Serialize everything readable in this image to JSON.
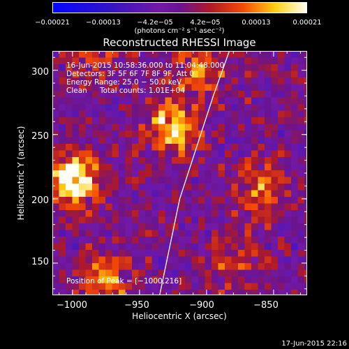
{
  "chart_data": {
    "type": "heatmap",
    "title": "Reconstructed RHESSI Image",
    "xlabel": "Heliocentric X (arcsec)",
    "ylabel": "Heliocentric Y (arcsec)",
    "xlim": [
      -1015,
      -825
    ],
    "ylim": [
      125,
      315
    ],
    "xticks": [
      "−1000",
      "−950",
      "−900",
      "−850"
    ],
    "xtick_values": [
      -1000,
      -950,
      -900,
      -850
    ],
    "yticks": [
      "150",
      "200",
      "250",
      "300"
    ],
    "ytick_values": [
      150,
      200,
      250,
      300
    ],
    "colorbar": {
      "min": -0.00021,
      "max": 0.00021,
      "ticks": [
        "−0.00021",
        "−0.00013",
        "−4.2e−05",
        "4.2e−05",
        "0.00013",
        "0.00021"
      ],
      "tick_values": [
        -0.00021,
        -0.00013,
        -4.2e-05,
        4.2e-05,
        0.00013,
        0.00021
      ],
      "units": "(photons cm⁻² s⁻¹ asec⁻²)"
    },
    "annotations": {
      "time_range": "16-Jun-2015 10:58:36.000 to 11:04:48.000",
      "detectors": "Detectors: 3F 5F 6F 7F 8F 9F, Att 0",
      "energy_range": "Energy Range: 25.0 − 50.0 keV",
      "algorithm": "Clean",
      "total_counts": "Total counts: 1.01E+04",
      "peak_position": "Position of Peak = [−1000,216]"
    },
    "sources": [
      {
        "x": -1000,
        "y": 216,
        "intensity": 0.00021
      },
      {
        "x": -925,
        "y": 255,
        "intensity": 0.00017
      },
      {
        "x": -905,
        "y": 300,
        "intensity": 0.00011
      },
      {
        "x": -860,
        "y": 205,
        "intensity": 0.00012
      },
      {
        "x": -975,
        "y": 135,
        "intensity": 0.00013
      },
      {
        "x": -880,
        "y": 150,
        "intensity": 8e-05
      },
      {
        "x": -985,
        "y": 305,
        "intensity": 6e-05
      }
    ],
    "limb_arc": [
      [
        -935,
        125
      ],
      [
        -920,
        200
      ],
      [
        -895,
        280
      ],
      [
        -883,
        315
      ]
    ]
  },
  "footer": {
    "date": "17-Jun-2015 22:16"
  }
}
